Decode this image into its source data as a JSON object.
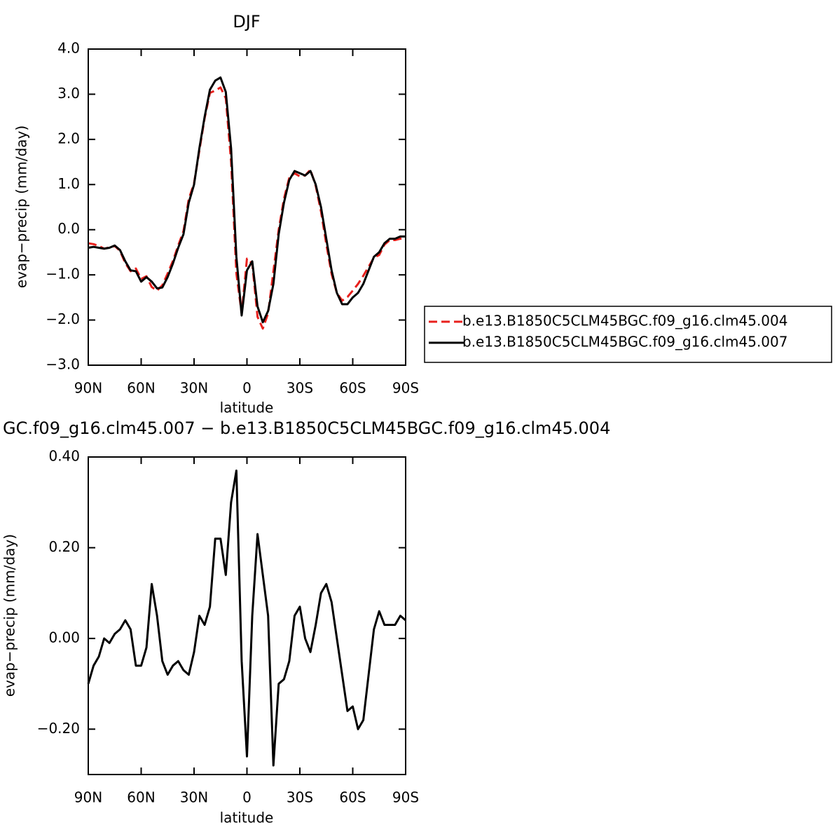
{
  "chart_data": [
    {
      "type": "line",
      "title": "DJF",
      "xlabel": "latitude",
      "ylabel": "evap−precip (mm/day)",
      "x": [
        90,
        87,
        84,
        81,
        78,
        75,
        72,
        69,
        66,
        63,
        60,
        57,
        54,
        51,
        48,
        45,
        42,
        39,
        36,
        33,
        30,
        27,
        24,
        21,
        18,
        15,
        12,
        9,
        6,
        3,
        0,
        -3,
        -6,
        -9,
        -12,
        -15,
        -18,
        -21,
        -24,
        -27,
        -30,
        -33,
        -36,
        -39,
        -42,
        -45,
        -48,
        -51,
        -54,
        -57,
        -60,
        -63,
        -66,
        -69,
        -72,
        -75,
        -78,
        -81,
        -84,
        -87,
        -90
      ],
      "xlim": [
        90,
        -90
      ],
      "xticks": [
        {
          "value": 90,
          "label": "90N"
        },
        {
          "value": 60,
          "label": "60N"
        },
        {
          "value": 30,
          "label": "30N"
        },
        0,
        {
          "value": -30,
          "label": "30S"
        },
        {
          "value": -60,
          "label": "60S"
        },
        {
          "value": -90,
          "label": "90S"
        }
      ],
      "ylim": [
        -3,
        4
      ],
      "yticks": [
        {
          "value": 4,
          "label": "4.0"
        },
        {
          "value": 3,
          "label": "3.0"
        },
        {
          "value": 2,
          "label": "2.0"
        },
        {
          "value": 1,
          "label": "1.0"
        },
        {
          "value": 0,
          "label": "0.0"
        },
        {
          "value": -1,
          "label": "−1.0"
        },
        {
          "value": -2,
          "label": "−2.0"
        },
        {
          "value": -3,
          "label": "−3.0"
        }
      ],
      "legend": "right",
      "series": [
        {
          "name": "b.e13.B1850C5CLM45BGC.f09_g16.clm45.004",
          "color": "#e8201c",
          "dash": true,
          "values": [
            -0.3,
            -0.32,
            -0.36,
            -0.42,
            -0.39,
            -0.36,
            -0.47,
            -0.74,
            -0.92,
            -0.86,
            -1.09,
            -1.03,
            -1.27,
            -1.35,
            -1.23,
            -0.97,
            -0.69,
            -0.35,
            -0.03,
            0.68,
            1.03,
            1.75,
            2.47,
            3.03,
            3.08,
            3.15,
            2.91,
            1.5,
            -0.97,
            -1.85,
            -0.64,
            -0.75,
            -1.93,
            -2.19,
            -1.85,
            -0.92,
            0.0,
            0.69,
            1.15,
            1.25,
            1.18,
            1.2,
            1.33,
            0.97,
            0.4,
            -0.32,
            -0.98,
            -1.4,
            -1.57,
            -1.49,
            -1.35,
            -1.2,
            -1.02,
            -0.82,
            -0.62,
            -0.56,
            -0.33,
            -0.23,
            -0.23,
            -0.2,
            -0.19
          ]
        },
        {
          "name": "b.e13.B1850C5CLM45BGC.f09_g16.clm45.007",
          "color": "#000000",
          "dash": false,
          "values": [
            -0.4,
            -0.38,
            -0.4,
            -0.42,
            -0.4,
            -0.35,
            -0.45,
            -0.7,
            -0.9,
            -0.92,
            -1.15,
            -1.05,
            -1.15,
            -1.3,
            -1.28,
            -1.05,
            -0.75,
            -0.4,
            -0.1,
            0.6,
            1.0,
            1.8,
            2.5,
            3.1,
            3.3,
            3.37,
            3.05,
            1.8,
            -0.6,
            -1.9,
            -0.9,
            -0.7,
            -1.7,
            -2.05,
            -1.8,
            -1.2,
            -0.1,
            0.6,
            1.1,
            1.3,
            1.25,
            1.2,
            1.3,
            1.0,
            0.5,
            -0.2,
            -0.9,
            -1.4,
            -1.65,
            -1.65,
            -1.5,
            -1.4,
            -1.2,
            -0.9,
            -0.6,
            -0.5,
            -0.3,
            -0.2,
            -0.2,
            -0.15,
            -0.15
          ]
        }
      ]
    },
    {
      "type": "line",
      "title": "GC.f09_g16.clm45.007 − b.e13.B1850C5CLM45BGC.f09_g16.clm45.004",
      "xlabel": "latitude",
      "ylabel": "evap−precip (mm/day)",
      "x": [
        90,
        87,
        84,
        81,
        78,
        75,
        72,
        69,
        66,
        63,
        60,
        57,
        54,
        51,
        48,
        45,
        42,
        39,
        36,
        33,
        30,
        27,
        24,
        21,
        18,
        15,
        12,
        9,
        6,
        3,
        0,
        -3,
        -6,
        -9,
        -12,
        -15,
        -18,
        -21,
        -24,
        -27,
        -30,
        -33,
        -36,
        -39,
        -42,
        -45,
        -48,
        -51,
        -54,
        -57,
        -60,
        -63,
        -66,
        -69,
        -72,
        -75,
        -78,
        -81,
        -84,
        -87,
        -90
      ],
      "xlim": [
        90,
        -90
      ],
      "xticks": [
        {
          "value": 90,
          "label": "90N"
        },
        {
          "value": 60,
          "label": "60N"
        },
        {
          "value": 30,
          "label": "30N"
        },
        0,
        {
          "value": -30,
          "label": "30S"
        },
        {
          "value": -60,
          "label": "60S"
        },
        {
          "value": -90,
          "label": "90S"
        }
      ],
      "ylim": [
        -0.3,
        0.4
      ],
      "yticks": [
        {
          "value": 0.4,
          "label": "0.40"
        },
        {
          "value": 0.2,
          "label": "0.20"
        },
        {
          "value": 0,
          "label": "0.00"
        },
        {
          "value": -0.2,
          "label": "−0.20"
        }
      ],
      "color": "#000000",
      "values": [
        -0.1,
        -0.06,
        -0.04,
        0.0,
        -0.01,
        0.01,
        0.02,
        0.04,
        0.02,
        -0.06,
        -0.06,
        -0.02,
        0.12,
        0.05,
        -0.05,
        -0.08,
        -0.06,
        -0.05,
        -0.07,
        -0.08,
        -0.03,
        0.05,
        0.03,
        0.07,
        0.22,
        0.22,
        0.14,
        0.3,
        0.37,
        -0.05,
        -0.26,
        0.05,
        0.23,
        0.14,
        0.05,
        -0.28,
        -0.1,
        -0.09,
        -0.05,
        0.05,
        0.07,
        0.0,
        -0.03,
        0.03,
        0.1,
        0.12,
        0.08,
        0.0,
        -0.08,
        -0.16,
        -0.15,
        -0.2,
        -0.18,
        -0.08,
        0.02,
        0.06,
        0.03,
        0.03,
        0.03,
        0.05,
        0.04
      ]
    }
  ]
}
